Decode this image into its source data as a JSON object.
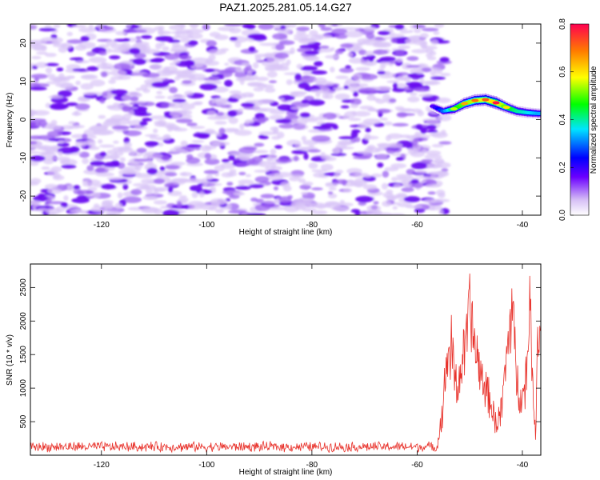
{
  "title": "PAZ1.2025.281.05.14.G27",
  "chart_data": [
    {
      "type": "heatmap",
      "name": "spectrogram",
      "xlabel": "Height of straight line (km)",
      "ylabel": "Frequency (Hz)",
      "xlim": [
        -133.5,
        -36.5
      ],
      "ylim": [
        -25,
        25
      ],
      "x_ticks": [
        -120,
        -100,
        -80,
        -60,
        -40
      ],
      "y_ticks": [
        -20,
        -10,
        0,
        10,
        20
      ],
      "x_tick_labels": [
        "-120",
        "-100",
        "-80",
        "-60",
        "-40"
      ],
      "y_tick_labels": [
        "-20",
        "-10",
        "0",
        "10",
        "20"
      ],
      "noise_region_x": [
        -133.5,
        -55.5
      ],
      "signal_trace": {
        "x": [
          -57,
          -55,
          -53,
          -51,
          -49,
          -47,
          -45,
          -43,
          -41,
          -39,
          -37
        ],
        "freq": [
          3.5,
          2.2,
          2.8,
          4.2,
          5.0,
          5.2,
          4.4,
          3.2,
          2.2,
          1.8,
          1.6
        ],
        "amplitude": [
          0.2,
          0.35,
          0.55,
          0.65,
          0.7,
          0.72,
          0.78,
          0.6,
          0.5,
          0.45,
          0.4
        ]
      },
      "colorbar": {
        "label": "Normalized spectral amplitude",
        "range": [
          0,
          0.8
        ],
        "ticks": [
          0.0,
          0.2,
          0.4,
          0.6,
          0.8
        ],
        "tick_labels": [
          "0.0",
          "0.2",
          "0.4",
          "0.6",
          "0.8"
        ]
      }
    },
    {
      "type": "line",
      "name": "snr",
      "xlabel": "Height of straight line (km)",
      "ylabel": "SNR (10 * v/v)",
      "xlim": [
        -133.5,
        -36.5
      ],
      "ylim": [
        0,
        2850
      ],
      "x_ticks": [
        -120,
        -100,
        -80,
        -60,
        -40
      ],
      "y_ticks": [
        500,
        1000,
        1500,
        2000,
        2500
      ],
      "x_tick_labels": [
        "-120",
        "-100",
        "-80",
        "-60",
        "-40"
      ],
      "y_tick_labels": [
        "500",
        "1000",
        "1500",
        "2000",
        "2500"
      ],
      "color": "#e8312a",
      "noise_floor": {
        "x_range": [
          -133.5,
          -56
        ],
        "mean": 125,
        "spread": 80
      },
      "signal_envelope": {
        "x": [
          -56,
          -55,
          -54.5,
          -53.5,
          -52.5,
          -51,
          -50,
          -49,
          -48,
          -47,
          -46,
          -45,
          -44,
          -43,
          -42,
          -41,
          -40,
          -39,
          -38.5,
          -38,
          -37.5,
          -37,
          -36.5
        ],
        "y": [
          200,
          800,
          1400,
          1700,
          1050,
          1600,
          2300,
          1650,
          1300,
          1050,
          800,
          500,
          700,
          1500,
          2400,
          1100,
          900,
          1400,
          2850,
          900,
          300,
          2200,
          1900
        ]
      }
    }
  ]
}
